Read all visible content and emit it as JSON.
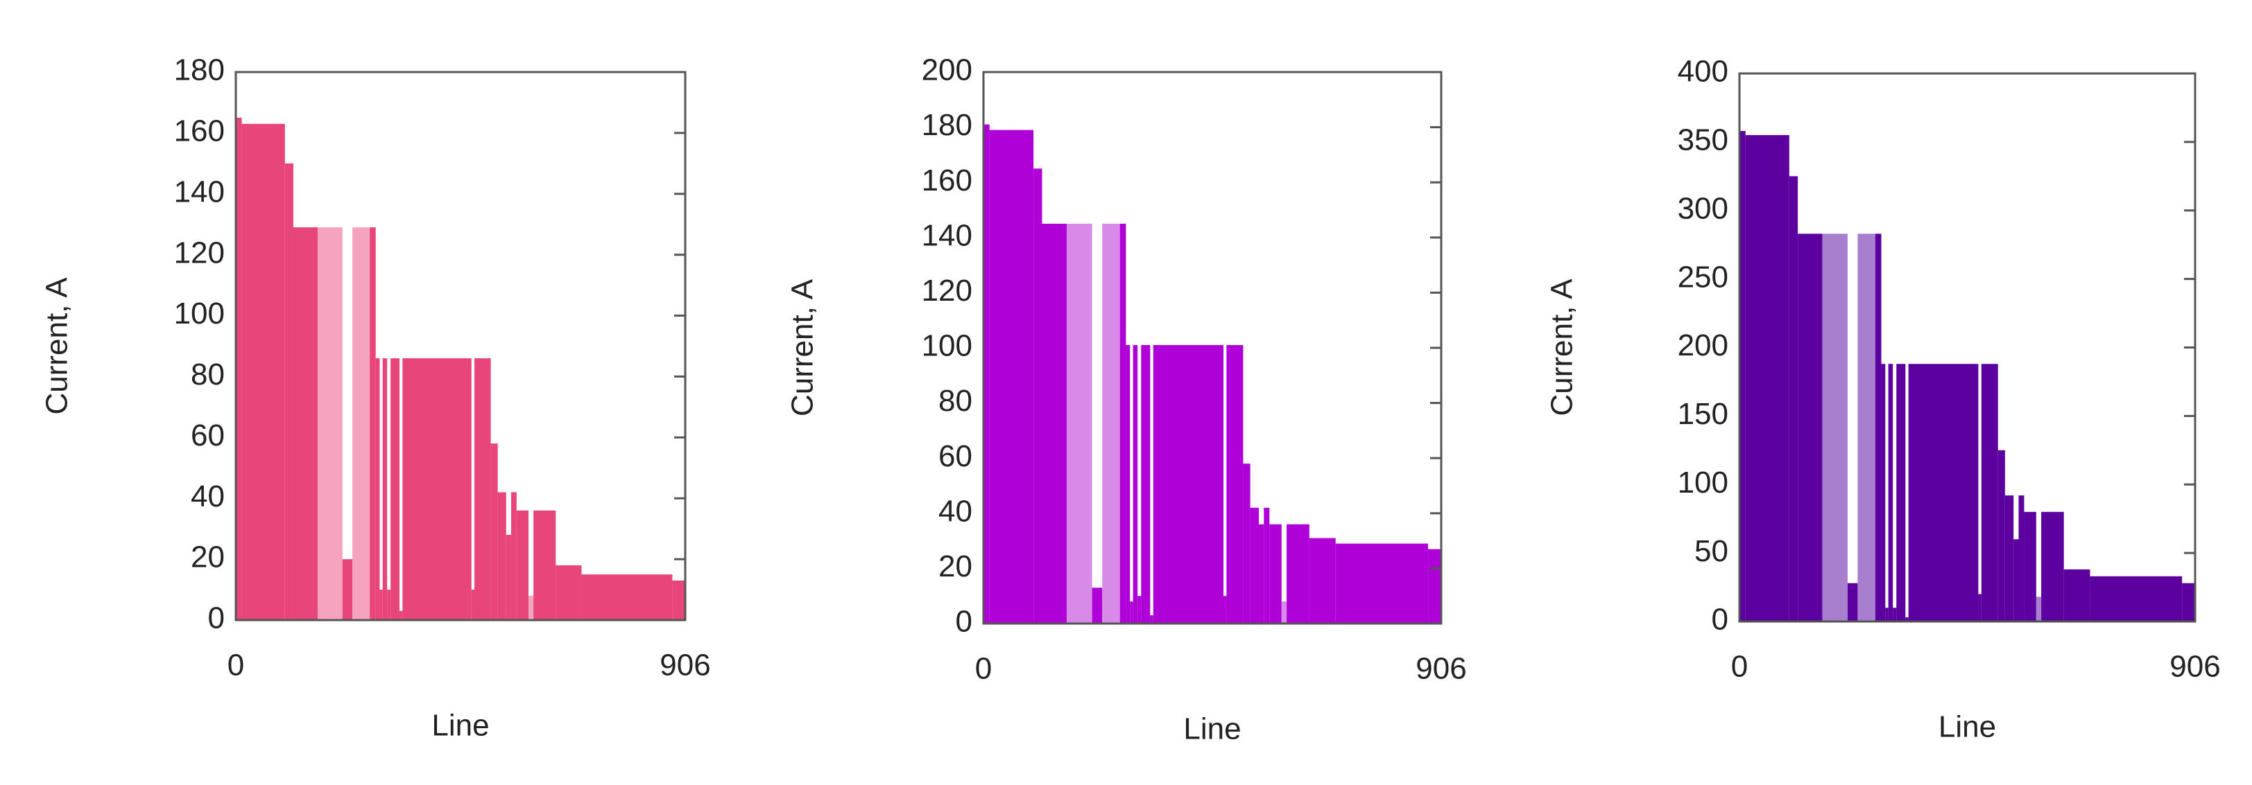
{
  "chart_data": [
    {
      "type": "histogram",
      "xlabel": "Line",
      "ylabel": "Current, A",
      "xlim": [
        0,
        906
      ],
      "xticks": [
        0,
        906
      ],
      "ylim": [
        0,
        180
      ],
      "yticks": [
        0,
        20,
        40,
        60,
        80,
        100,
        120,
        140,
        160,
        180
      ],
      "bins": [
        0,
        12,
        99,
        116,
        165,
        215,
        235,
        270,
        282,
        290,
        296,
        305,
        312,
        330,
        336,
        475,
        481,
        514,
        528,
        545,
        555,
        566,
        590,
        600,
        645,
        697,
        880,
        906
      ],
      "values": [
        165,
        163,
        150,
        129,
        129,
        20,
        129,
        129,
        86,
        10,
        86,
        10,
        86,
        3,
        86,
        10,
        86,
        58,
        42,
        28,
        42,
        36,
        8,
        36,
        18,
        15,
        13
      ],
      "colors": [
        "#e8457a",
        "#e8457a",
        "#e8457a",
        "#e8457a",
        "#f5a3bf",
        "#e8457a",
        "#f5a3bf",
        "#e8457a",
        "#e8457a",
        "#e8457a",
        "#e8457a",
        "#e8457a",
        "#e8457a",
        "#e8457a",
        "#e8457a",
        "#e8457a",
        "#e8457a",
        "#e8457a",
        "#e8457a",
        "#e8457a",
        "#e8457a",
        "#e8457a",
        "#f5a3bf",
        "#e8457a",
        "#e8457a",
        "#e8457a",
        "#e8457a"
      ]
    },
    {
      "type": "histogram",
      "xlabel": "Line",
      "ylabel": "Current, A",
      "xlim": [
        0,
        906
      ],
      "xticks": [
        0,
        906
      ],
      "ylim": [
        0,
        200
      ],
      "yticks": [
        0,
        20,
        40,
        60,
        80,
        100,
        120,
        140,
        160,
        180,
        200
      ],
      "bins": [
        0,
        12,
        99,
        116,
        165,
        215,
        235,
        270,
        282,
        290,
        296,
        305,
        312,
        330,
        336,
        475,
        481,
        514,
        528,
        545,
        555,
        566,
        590,
        600,
        645,
        697,
        880,
        906
      ],
      "values": [
        181,
        179,
        165,
        145,
        145,
        13,
        145,
        145,
        101,
        8,
        101,
        10,
        101,
        3,
        101,
        10,
        101,
        58,
        42,
        36,
        42,
        36,
        8,
        36,
        31,
        29,
        27
      ],
      "colors": [
        "#b000d8",
        "#b000d8",
        "#b000d8",
        "#b000d8",
        "#d88ae8",
        "#b000d8",
        "#d88ae8",
        "#b000d8",
        "#b000d8",
        "#b000d8",
        "#b000d8",
        "#b000d8",
        "#b000d8",
        "#b000d8",
        "#b000d8",
        "#b000d8",
        "#b000d8",
        "#b000d8",
        "#b000d8",
        "#b000d8",
        "#b000d8",
        "#b000d8",
        "#d88ae8",
        "#b000d8",
        "#b000d8",
        "#b000d8",
        "#b000d8"
      ]
    },
    {
      "type": "histogram",
      "xlabel": "Line",
      "ylabel": "Current, A",
      "xlim": [
        0,
        906
      ],
      "xticks": [
        0,
        906
      ],
      "ylim": [
        0,
        400
      ],
      "yticks": [
        0,
        50,
        100,
        150,
        200,
        250,
        300,
        350,
        400
      ],
      "bins": [
        0,
        12,
        99,
        116,
        165,
        215,
        235,
        270,
        282,
        290,
        296,
        305,
        312,
        330,
        336,
        475,
        481,
        514,
        528,
        545,
        555,
        566,
        590,
        600,
        645,
        697,
        880,
        906
      ],
      "values": [
        358,
        355,
        325,
        283,
        283,
        28,
        283,
        283,
        188,
        10,
        188,
        10,
        188,
        3,
        188,
        20,
        188,
        125,
        92,
        60,
        92,
        80,
        18,
        80,
        38,
        33,
        28
      ],
      "colors": [
        "#5c00a0",
        "#5c00a0",
        "#5c00a0",
        "#5c00a0",
        "#a87fcf",
        "#5c00a0",
        "#a87fcf",
        "#5c00a0",
        "#5c00a0",
        "#5c00a0",
        "#5c00a0",
        "#5c00a0",
        "#5c00a0",
        "#5c00a0",
        "#5c00a0",
        "#5c00a0",
        "#5c00a0",
        "#5c00a0",
        "#5c00a0",
        "#5c00a0",
        "#5c00a0",
        "#5c00a0",
        "#a87fcf",
        "#5c00a0",
        "#5c00a0",
        "#5c00a0",
        "#5c00a0"
      ]
    }
  ]
}
